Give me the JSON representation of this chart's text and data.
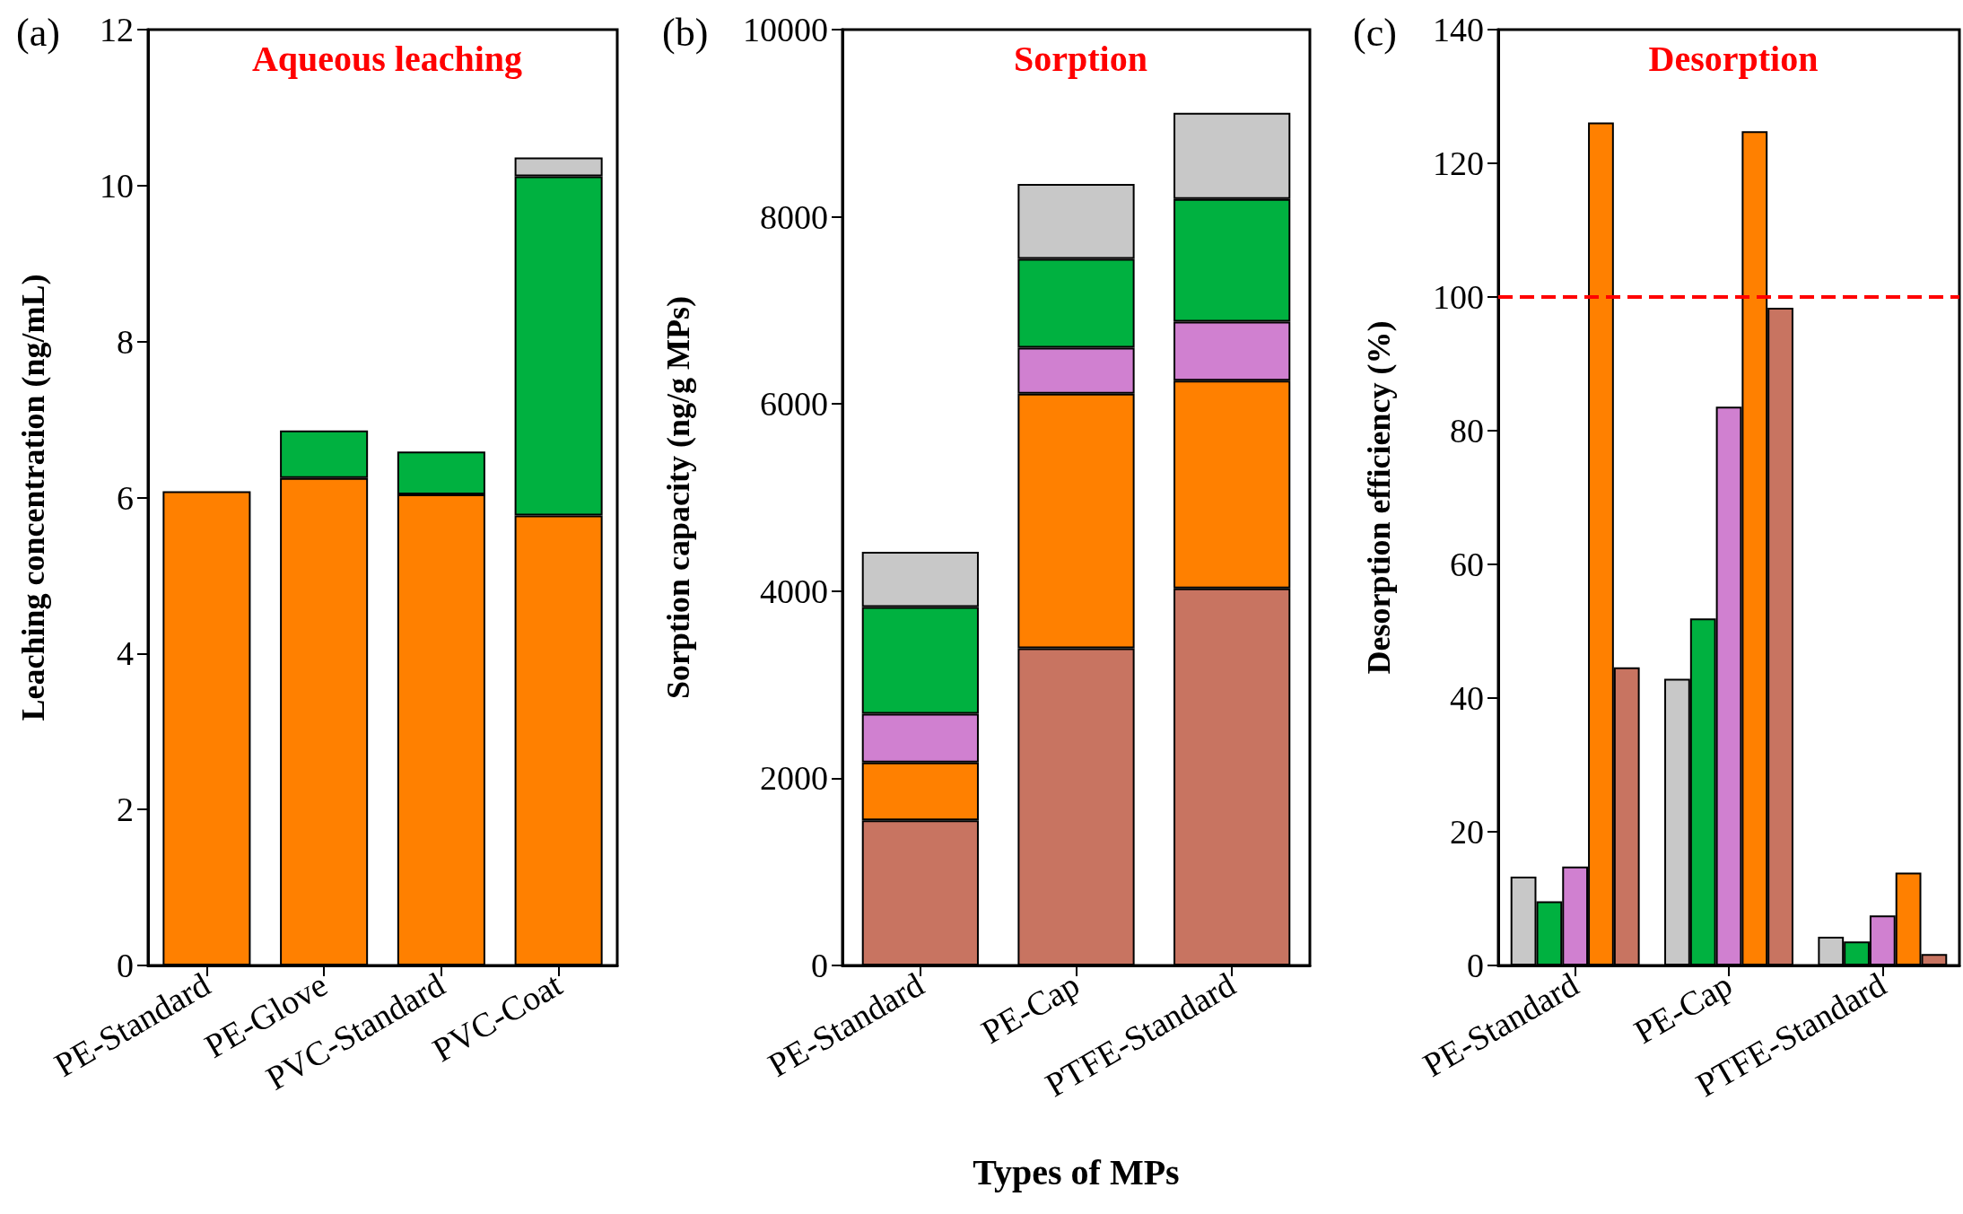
{
  "chart_data": [
    {
      "type": "bar",
      "title": "Aqueous leaching",
      "ylabel": "Leaching concentration (ng/mL)",
      "annotations": [
        "(a)"
      ],
      "categories": [
        "PE-Standard",
        "PE-Glove",
        "PVC-Standard",
        "PVC-Coat"
      ],
      "stacked": true,
      "grid": false,
      "ylim": [
        0,
        12
      ],
      "yticks": [
        0,
        2,
        4,
        6,
        8,
        10,
        12
      ],
      "series": [
        {
          "color": "#ff8000",
          "values": [
            6.08,
            6.25,
            6.04,
            5.77
          ]
        },
        {
          "color": "#00b140",
          "values": [
            null,
            0.61,
            0.55,
            4.35
          ]
        },
        {
          "color": "#c8c8c8",
          "values": [
            null,
            null,
            null,
            0.24
          ]
        }
      ]
    },
    {
      "type": "bar",
      "title": "Sorption",
      "ylabel": "Sorption capacity (ng/g MPs)",
      "xlabel": "Types of MPs",
      "annotations": [
        "(b)"
      ],
      "categories": [
        "PE-Standard",
        "PE-Cap",
        "PTFE-Standard"
      ],
      "stacked": true,
      "grid": false,
      "ylim": [
        0,
        10000
      ],
      "yticks": [
        0,
        2000,
        4000,
        6000,
        8000,
        10000
      ],
      "series": [
        {
          "color": "#c87461",
          "values": [
            1550,
            3390,
            4030
          ]
        },
        {
          "color": "#ff8000",
          "values": [
            620,
            2720,
            2220
          ]
        },
        {
          "color": "#d080d0",
          "values": [
            520,
            490,
            630
          ]
        },
        {
          "color": "#00b140",
          "values": [
            1140,
            950,
            1310
          ]
        },
        {
          "color": "#c8c8c8",
          "values": [
            590,
            800,
            920
          ]
        }
      ]
    },
    {
      "type": "bar",
      "title": "Desorption",
      "ylabel": "Desorption efficiency (%)",
      "annotations": [
        "(c)"
      ],
      "categories": [
        "PE-Standard",
        "PE-Cap",
        "PTFE-Standard"
      ],
      "grid": false,
      "ylim": [
        0,
        140
      ],
      "yticks": [
        0,
        20,
        40,
        60,
        80,
        100,
        120,
        140
      ],
      "ref_lines": [
        {
          "axis": "y",
          "value": 100,
          "color": "#ff0000",
          "line_style": "dashed"
        }
      ],
      "series": [
        {
          "color": "#c8c8c8",
          "values": [
            13.3,
            42.9,
            4.3
          ]
        },
        {
          "color": "#00b140",
          "values": [
            9.6,
            51.9,
            3.6
          ]
        },
        {
          "color": "#d080d0",
          "values": [
            14.8,
            83.6,
            7.5
          ]
        },
        {
          "color": "#ff8000",
          "values": [
            126.1,
            124.8,
            13.9
          ]
        },
        {
          "color": "#c87461",
          "values": [
            44.6,
            98.4,
            1.7
          ]
        }
      ]
    }
  ]
}
